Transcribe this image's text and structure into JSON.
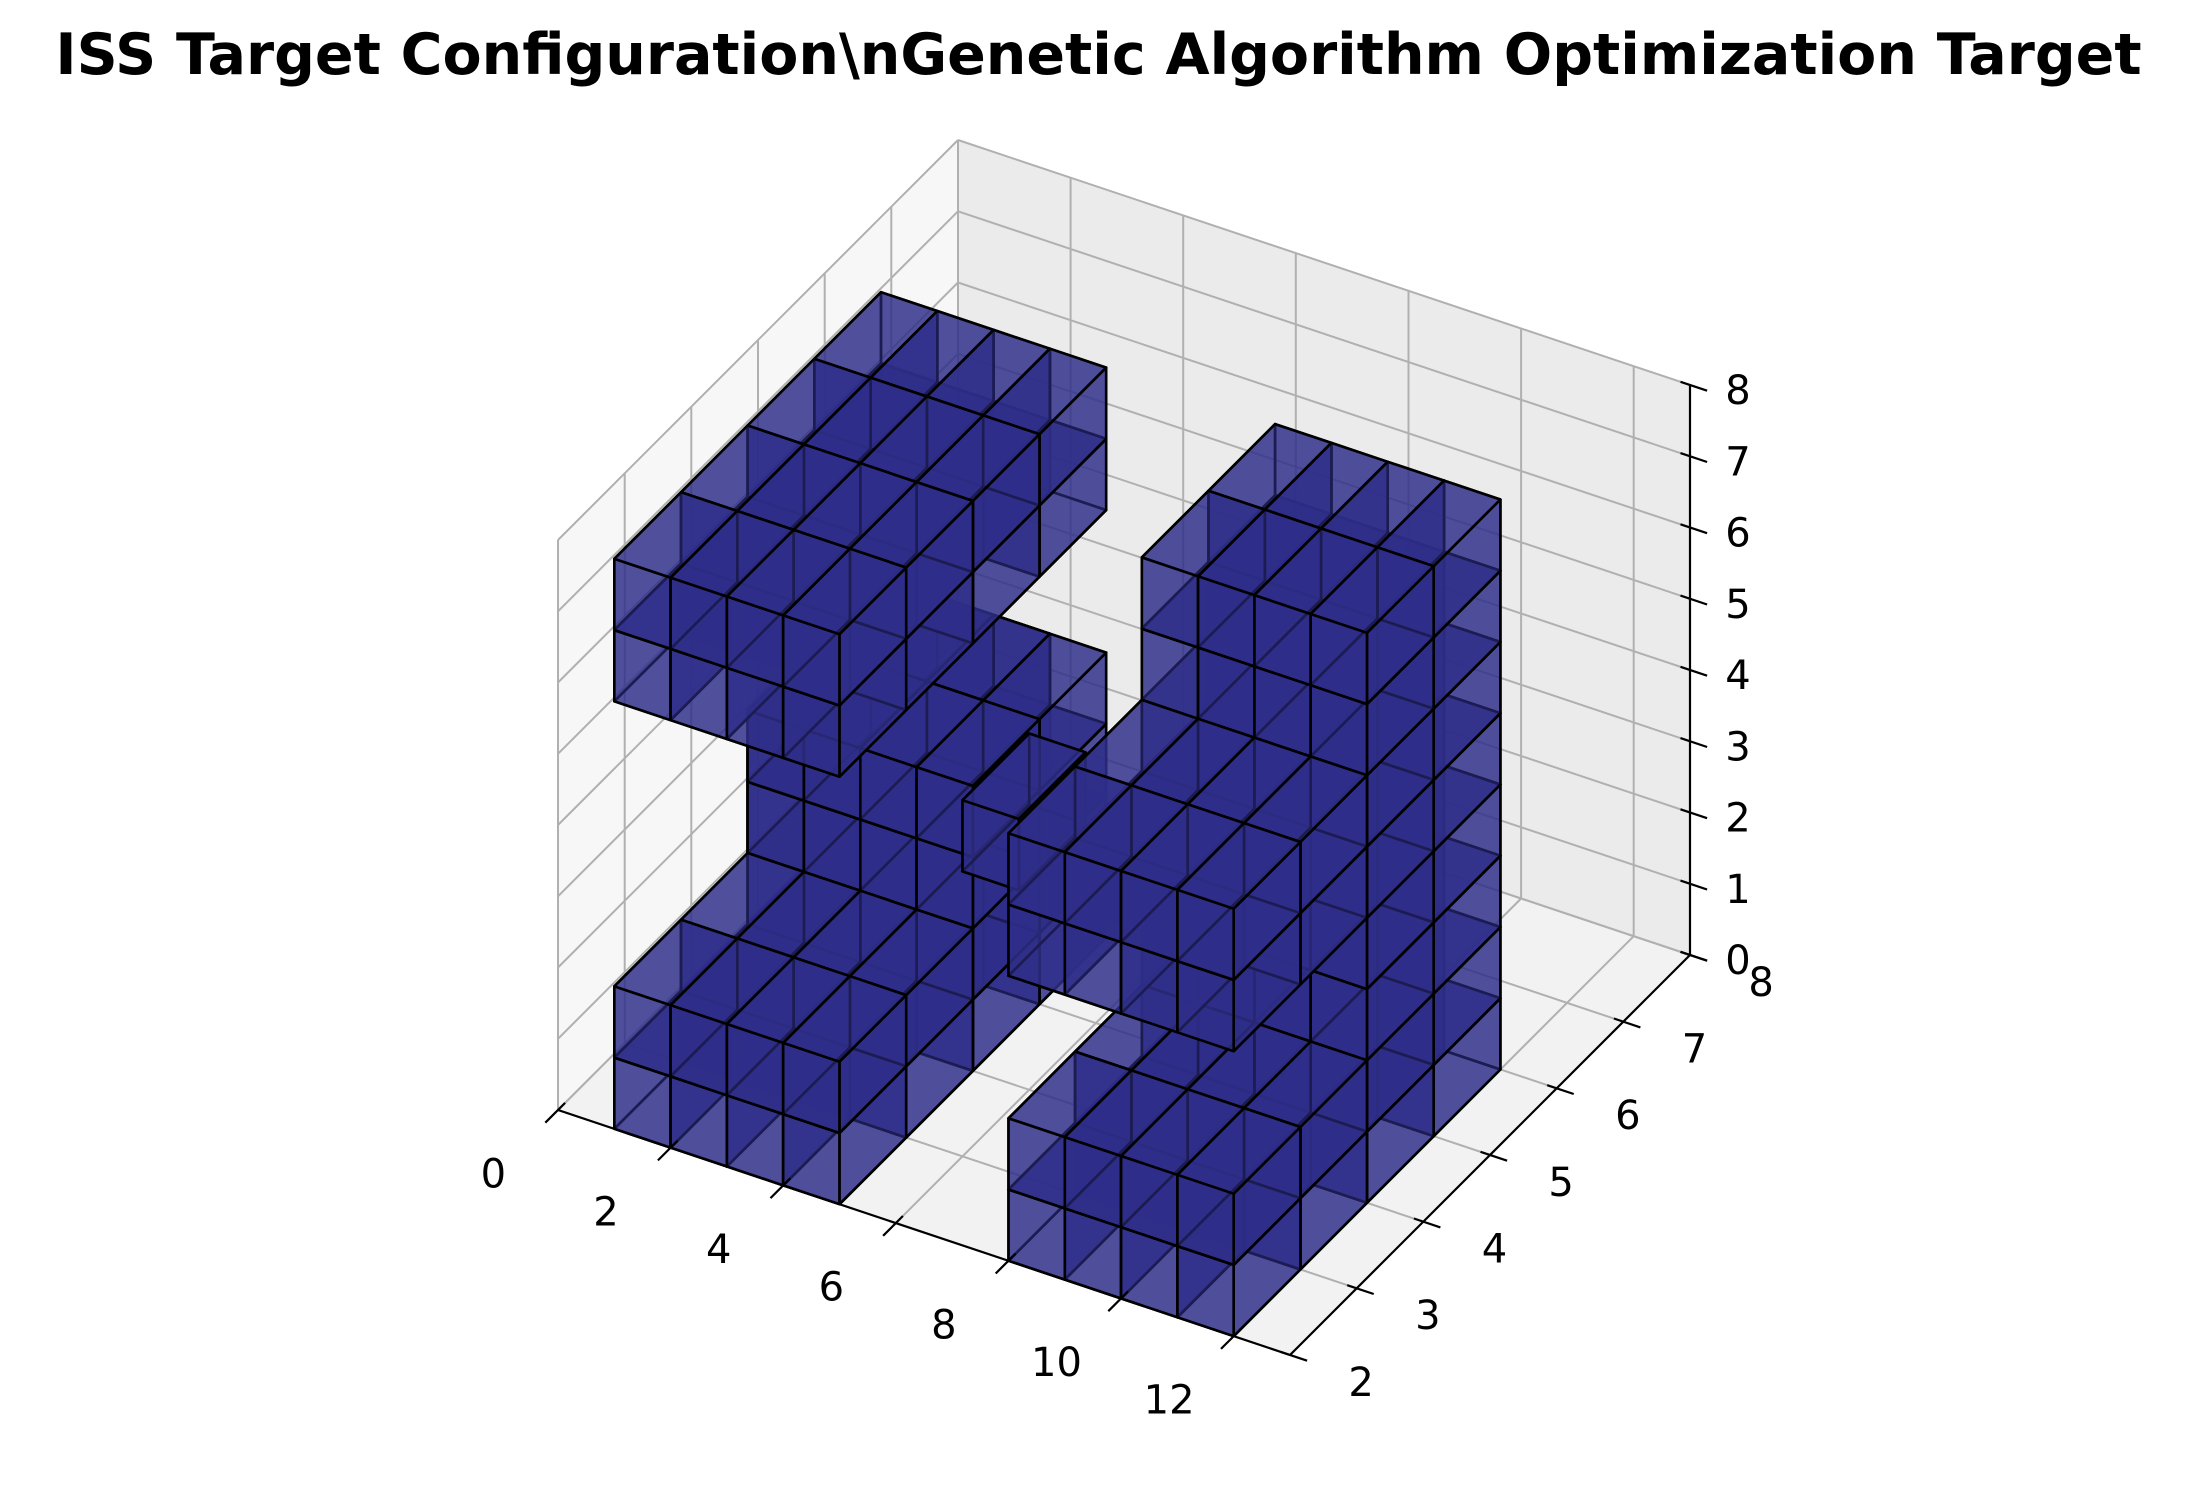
{
  "chart_data": {
    "type": "voxels",
    "title": "ISS Target Configuration\\nGenetic Algorithm Optimization Target",
    "xlabel": "",
    "ylabel": "",
    "zlabel": "",
    "xlim": [
      0,
      13
    ],
    "ylim": [
      2,
      8
    ],
    "zlim": [
      0,
      8
    ],
    "x_ticks": [
      "0",
      "2",
      "4",
      "6",
      "8",
      "10",
      "12"
    ],
    "y_ticks": [
      "2",
      "3",
      "4",
      "5",
      "6",
      "7",
      "8"
    ],
    "z_ticks": [
      "0",
      "1",
      "2",
      "3",
      "4",
      "5",
      "6",
      "7",
      "8"
    ],
    "grid": true,
    "face_color": "#2f2f8a",
    "face_alpha": 0.6,
    "edge_color": "#000000",
    "pane_colors": {
      "floor": "#f2f2f2",
      "back": "#ebebeb",
      "side": "#f7f7f7"
    },
    "voxel_groups": [
      {
        "x": [
          1,
          5
        ],
        "y": [
          2,
          4
        ],
        "z": [
          0,
          2
        ]
      },
      {
        "x": [
          1,
          5
        ],
        "y": [
          4,
          6
        ],
        "z": [
          0,
          4
        ]
      },
      {
        "x": [
          1,
          4
        ],
        "y": [
          4,
          6
        ],
        "z": [
          2,
          4
        ]
      },
      {
        "x": [
          8,
          12
        ],
        "y": [
          2,
          4
        ],
        "z": [
          0,
          2
        ]
      },
      {
        "x": [
          8,
          12
        ],
        "y": [
          4,
          6
        ],
        "z": [
          0,
          4
        ]
      },
      {
        "x": [
          1,
          5
        ],
        "y": [
          2,
          4
        ],
        "z": [
          6,
          8
        ]
      },
      {
        "x": [
          1,
          5
        ],
        "y": [
          4,
          6
        ],
        "z": [
          6,
          8
        ]
      },
      {
        "x": [
          8,
          12
        ],
        "y": [
          2,
          4
        ],
        "z": [
          4,
          6
        ]
      },
      {
        "x": [
          8,
          12
        ],
        "y": [
          4,
          6
        ],
        "z": [
          4,
          8
        ]
      },
      {
        "x": [
          6,
          7
        ],
        "y": [
          3,
          4
        ],
        "z": [
          4,
          5
        ]
      }
    ]
  }
}
